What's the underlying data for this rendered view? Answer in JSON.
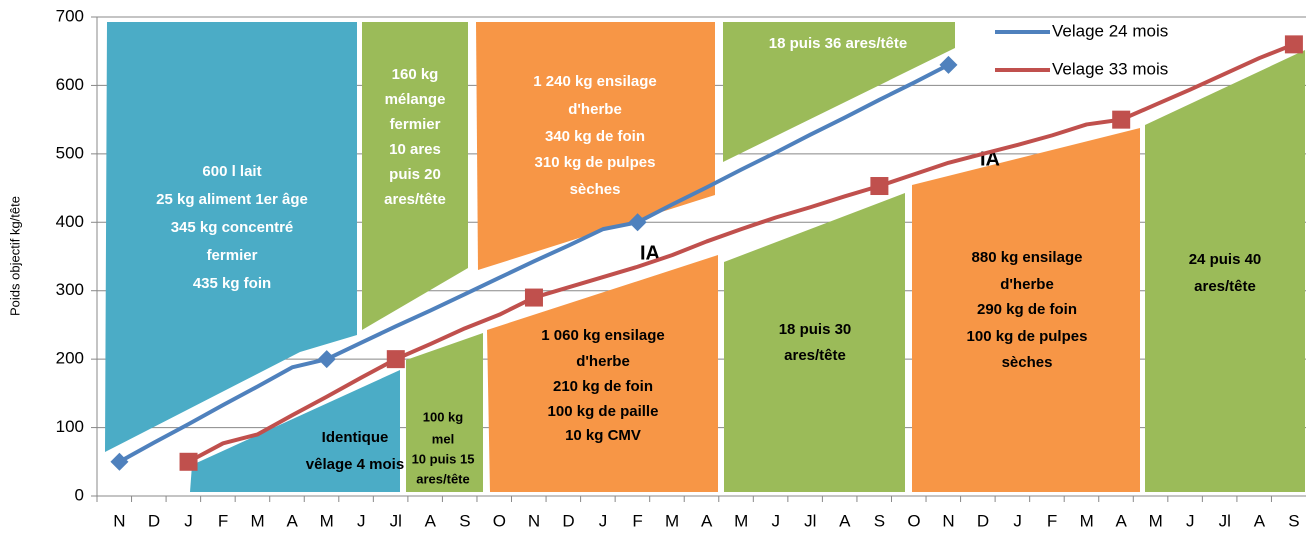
{
  "chart_data": {
    "type": "line",
    "y_axis_label": "Poids objectif kg/tête",
    "categories": [
      "N",
      "D",
      "J",
      "F",
      "M",
      "A",
      "M",
      "J",
      "Jl",
      "A",
      "S",
      "O",
      "N",
      "D",
      "J",
      "F",
      "M",
      "A",
      "M",
      "J",
      "Jl",
      "A",
      "S",
      "O",
      "N",
      "D",
      "J",
      "F",
      "M",
      "A",
      "M",
      "J",
      "Jl",
      "A",
      "S"
    ],
    "series": [
      {
        "name": "Velage 24 mois",
        "color": "#4f81bd",
        "marker": "diamond",
        "markers": [
          0,
          6,
          15,
          24
        ],
        "values": [
          50,
          78,
          105,
          133,
          160,
          188,
          200,
          224,
          248,
          271,
          295,
          319,
          343,
          366,
          390,
          400,
          426,
          451,
          477,
          502,
          528,
          553,
          579,
          604,
          630,
          null,
          null,
          null,
          null,
          null,
          null,
          null,
          null,
          null,
          null
        ]
      },
      {
        "name": "Velage 33 mois",
        "color": "#c0504d",
        "marker": "square",
        "markers": [
          2,
          8,
          12,
          22,
          29,
          34
        ],
        "values": [
          null,
          null,
          50,
          77,
          90,
          118,
          145,
          173,
          200,
          222,
          245,
          265,
          290,
          305,
          320,
          335,
          352,
          372,
          390,
          407,
          422,
          438,
          453,
          470,
          487,
          500,
          513,
          527,
          543,
          550,
          572,
          594,
          617,
          640,
          660
        ]
      }
    ],
    "ylim": [
      0,
      700
    ],
    "yticks": [
      0,
      100,
      200,
      300,
      400,
      500,
      600,
      700
    ],
    "grid": true,
    "legend": "upper right",
    "annotations": [
      {
        "color": "#ffffff",
        "lines": [
          "600 l lait",
          "25 kg aliment 1er âge",
          "345 kg concentré",
          "fermier",
          "435 kg foin"
        ]
      },
      {
        "color": "#ffffff",
        "lines": [
          "160 kg",
          "mélange",
          "fermier",
          "10 ares",
          "puis 20",
          "ares/tête"
        ]
      },
      {
        "color": "#ffffff",
        "lines": [
          "1 240 kg ensilage",
          "d'herbe",
          "340 kg de foin",
          "310 kg de pulpes",
          "sèches"
        ]
      },
      {
        "color": "#ffffff",
        "lines": [
          "18 puis 36 ares/tête"
        ]
      },
      {
        "color": "#000000",
        "lines": [
          "Identique",
          "vêlage 4 mois"
        ]
      },
      {
        "color": "#000000",
        "lines": [
          "100 kg",
          "mel",
          "10 puis 15",
          "ares/tête"
        ]
      },
      {
        "color": "#000000",
        "lines": [
          "1 060 kg ensilage",
          "d'herbe",
          "210 kg de foin",
          "100 kg de paille",
          "10 kg CMV"
        ]
      },
      {
        "color": "#000000",
        "lines": [
          "18 puis 30",
          "ares/tête"
        ]
      },
      {
        "color": "#000000",
        "lines": [
          "880 kg ensilage",
          "d'herbe",
          "290 kg de foin",
          "100 kg de pulpes",
          "sèches"
        ]
      },
      {
        "color": "#000000",
        "lines": [
          "24 puis 40",
          "ares/tête"
        ]
      },
      {
        "color": "#000000",
        "lines": [
          "IA"
        ]
      },
      {
        "color": "#000000",
        "lines": [
          "IA"
        ]
      }
    ]
  }
}
